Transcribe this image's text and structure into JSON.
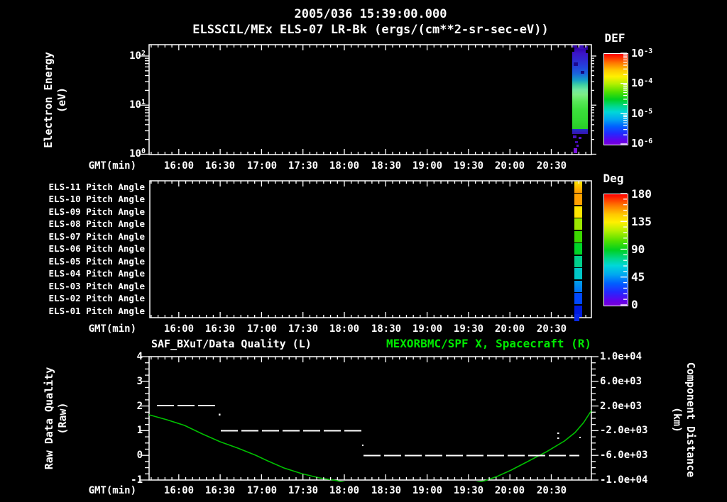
{
  "header": {
    "timestamp": "2005/036 15:39:00.000",
    "instrument_title": "ELSSCIL/MEx ELS-07 LR-Bk  (ergs/(cm**2-sr-sec-eV))"
  },
  "time_axis": {
    "label": "GMT(min)",
    "ticks": [
      "16:00",
      "16:30",
      "17:00",
      "17:30",
      "18:00",
      "18:30",
      "19:00",
      "19:30",
      "20:00",
      "20:30"
    ]
  },
  "spectrogram_panel": {
    "ylabel_line1": "Electron Energy",
    "ylabel_line2": "(eV)",
    "yticks": [
      {
        "b": "10",
        "e": "2"
      },
      {
        "b": "10",
        "e": "1"
      },
      {
        "b": "10",
        "e": "0"
      }
    ]
  },
  "def_colorbar": {
    "title": "DEF",
    "ticks": [
      {
        "b": "10",
        "e": "-3"
      },
      {
        "b": "10",
        "e": "-4"
      },
      {
        "b": "10",
        "e": "-5"
      },
      {
        "b": "10",
        "e": "-6"
      }
    ]
  },
  "pitch_panel": {
    "row_labels": [
      "ELS-11 Pitch Angle",
      "ELS-10 Pitch Angle",
      "ELS-09 Pitch Angle",
      "ELS-08 Pitch Angle",
      "ELS-07 Pitch Angle",
      "ELS-06 Pitch Angle",
      "ELS-05 Pitch Angle",
      "ELS-04 Pitch Angle",
      "ELS-03 Pitch Angle",
      "ELS-02 Pitch Angle",
      "ELS-01 Pitch Angle"
    ]
  },
  "deg_colorbar": {
    "title": "Deg",
    "ticks": [
      "180",
      "135",
      "90",
      "45",
      "0"
    ]
  },
  "quality_panel": {
    "title_left": "SAF_BXuT/Data Quality (L)",
    "title_right": "MEXORBMC/SPF X, Spacecraft (R)",
    "ylabel_left_line1": "Raw Data Quality",
    "ylabel_left_line2": "(Raw)",
    "ylabel_right_line1": "Component Distance",
    "ylabel_right_line2": "(km)",
    "yticks_left": [
      "4",
      "3",
      "2",
      "1",
      "0",
      "-1"
    ],
    "yticks_right": [
      "1.0e+04",
      "6.0e+03",
      "2.0e+03",
      "-2.0e+03",
      "-6.0e+03",
      "-1.0e+04"
    ]
  },
  "colors": {
    "background": "#000000",
    "axis": "#ffffff",
    "title_right_green": "#00e800",
    "distance_curve_green": "#00c000"
  },
  "chart_data": [
    {
      "type": "heatmap",
      "title": "ELSSCIL/MEx ELS-07 LR-Bk (ergs/(cm**2-sr-sec-eV))",
      "date": "2005/036",
      "start_time": "15:39:00.000",
      "xlabel": "GMT(min)",
      "x_ticks": [
        "16:00",
        "16:30",
        "17:00",
        "17:30",
        "18:00",
        "18:30",
        "19:00",
        "19:30",
        "20:00",
        "20:30"
      ],
      "x_range": [
        "15:39",
        "20:59"
      ],
      "ylabel": "Electron Energy (eV)",
      "y_scale": "log",
      "y_range": [
        1,
        170
      ],
      "colorbar": {
        "title": "DEF",
        "units": "ergs/(cm**2-sr-sec-eV)",
        "scale": "log",
        "range": [
          1e-06,
          0.001
        ]
      },
      "data_coverage": "single vertical burst only, approx 20:45-20:56; rest of panel empty/black",
      "profile_by_energy": [
        {
          "energy_eV": "60-150",
          "def": 2e-06
        },
        {
          "energy_eV": "25-60",
          "def": 5e-06
        },
        {
          "energy_eV": "10-25",
          "def": 1.5e-05
        },
        {
          "energy_eV": "4-10",
          "def": 3e-05
        },
        {
          "energy_eV": "1.5-4",
          "def": 4.5e-05
        },
        {
          "energy_eV": "1-1.5",
          "def": 4e-06
        }
      ]
    },
    {
      "type": "heatmap",
      "xlabel": "GMT(min)",
      "x_ticks": [
        "16:00",
        "16:30",
        "17:00",
        "17:30",
        "18:00",
        "18:30",
        "19:00",
        "19:30",
        "20:00",
        "20:30"
      ],
      "rows": [
        "ELS-11 Pitch Angle",
        "ELS-10 Pitch Angle",
        "ELS-09 Pitch Angle",
        "ELS-08 Pitch Angle",
        "ELS-07 Pitch Angle",
        "ELS-06 Pitch Angle",
        "ELS-05 Pitch Angle",
        "ELS-04 Pitch Angle",
        "ELS-03 Pitch Angle",
        "ELS-02 Pitch Angle",
        "ELS-01 Pitch Angle"
      ],
      "colorbar": {
        "title": "Deg",
        "range": [
          0,
          180
        ]
      },
      "data_coverage": "single narrow vertical burst only, approx 20:45-20:47",
      "values_deg": {
        "ELS-11": 160,
        "ELS-10": 150,
        "ELS-09": 140,
        "ELS-08": 120,
        "ELS-07": 105,
        "ELS-06": 95,
        "ELS-05": 80,
        "ELS-04": 65,
        "ELS-03": 45,
        "ELS-02": 30,
        "ELS-01": 15
      }
    },
    {
      "type": "line",
      "xlabel": "GMT(min)",
      "x_ticks": [
        "16:00",
        "16:30",
        "17:00",
        "17:30",
        "18:00",
        "18:30",
        "19:00",
        "19:30",
        "20:00",
        "20:30"
      ],
      "left_axis": {
        "label": "Raw Data Quality (Raw)",
        "range": [
          -1,
          4
        ]
      },
      "right_axis": {
        "label": "Component Distance (km)",
        "range": [
          -10000,
          10000
        ]
      },
      "series": [
        {
          "name": "SAF_BXuT/Data Quality (L)",
          "axis": "left",
          "style": "white dashed horizontal step segments",
          "steps": [
            {
              "from": "15:44",
              "to": "16:29",
              "quality": 2
            },
            {
              "from": "16:30",
              "to": "18:13",
              "quality": 1
            },
            {
              "from": "18:14",
              "to": "20:50",
              "quality": 0
            }
          ],
          "isolated_points": [
            {
              "time": "16:29",
              "quality": 1.6
            },
            {
              "time": "18:13",
              "quality": 0.4
            },
            {
              "time": "20:35",
              "quality": 0.9
            },
            {
              "time": "20:35",
              "quality": 0.7
            },
            {
              "time": "20:51",
              "quality": 0.75
            }
          ]
        },
        {
          "name": "MEXORBMC/SPF X, Spacecraft (R)",
          "axis": "right",
          "style": "solid green line",
          "points": [
            [
              "15:39",
              600
            ],
            [
              "16:00",
              -800
            ],
            [
              "16:30",
              -3800
            ],
            [
              "17:00",
              -6300
            ],
            [
              "17:30",
              -9000
            ],
            [
              "18:00",
              -10500
            ],
            [
              "18:30",
              -11700
            ],
            [
              "19:00",
              -11800
            ],
            [
              "19:30",
              -11100
            ],
            [
              "20:00",
              -8500
            ],
            [
              "20:30",
              -4900
            ],
            [
              "20:59",
              1300
            ]
          ],
          "note": "curve dips below right-axis minimum (-1.0e+04) between ~17:55 and ~19:35 and is clipped at the panel bottom"
        }
      ]
    }
  ]
}
